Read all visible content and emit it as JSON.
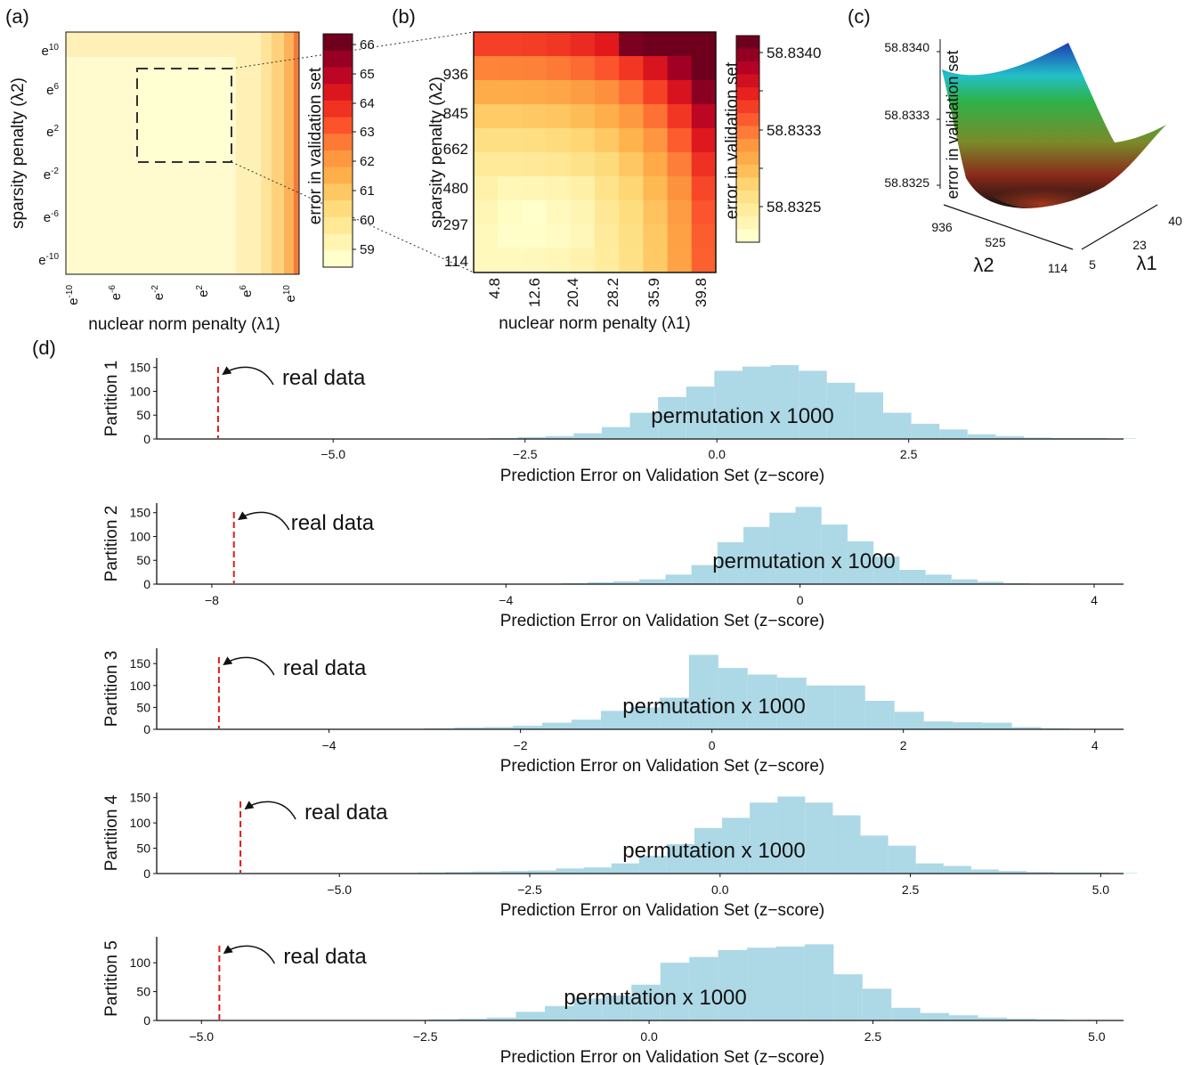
{
  "panels": {
    "a": "(a)",
    "b": "(b)",
    "c": "(c)",
    "d": "(d)"
  },
  "heatmap_a": {
    "xlabel": "nuclear norm penalty (λ1)",
    "ylabel": "sparsity penalty (λ2)",
    "xticks": [
      {
        "base": "e",
        "sup": "-10"
      },
      {
        "base": "e",
        "sup": "-6"
      },
      {
        "base": "e",
        "sup": "-2"
      },
      {
        "base": "e",
        "sup": "2"
      },
      {
        "base": "e",
        "sup": "6"
      },
      {
        "base": "e",
        "sup": "10"
      }
    ],
    "yticks": [
      {
        "base": "e",
        "sup": "10"
      },
      {
        "base": "e",
        "sup": "6"
      },
      {
        "base": "e",
        "sup": "2"
      },
      {
        "base": "e",
        "sup": "-2"
      },
      {
        "base": "e",
        "sup": "-6"
      },
      {
        "base": "e",
        "sup": "-10"
      }
    ],
    "colorbar_label": "error in validation set",
    "colorbar_ticks": [
      "66",
      "65",
      "64",
      "63",
      "62",
      "61",
      "60",
      "59"
    ]
  },
  "heatmap_b": {
    "xlabel": "nuclear norm penalty (λ1)",
    "ylabel": "sparsity penalty (λ2)",
    "xticks": [
      "4.8",
      "12.6",
      "20.4",
      "28.2",
      "35.9",
      "39.8"
    ],
    "yticks": [
      "936",
      "845",
      "662",
      "480",
      "297",
      "114"
    ],
    "colorbar_label": "error in validation set",
    "colorbar_ticks": [
      "58.8340",
      "58.8333",
      "58.8325"
    ]
  },
  "surface_c": {
    "zlabel": "error in validation set",
    "zticks": [
      "58.8340",
      "58.8333",
      "58.8325"
    ],
    "lambda2_ticks": [
      "936",
      "525",
      "114"
    ],
    "lambda1_ticks": [
      "40",
      "23",
      "5"
    ],
    "lambda2_label": "λ2",
    "lambda1_label": "λ1"
  },
  "chart_data": [
    {
      "type": "histogram",
      "ylabel": "Partition 1",
      "xlabel": "Prediction Error on Validation Set (z−score)",
      "xlim": [
        -7.3,
        5.3
      ],
      "ylim": [
        0,
        170
      ],
      "yticks": [
        0,
        50,
        100,
        150
      ],
      "xticks": [
        {
          "v": -5.0,
          "l": "−5.0"
        },
        {
          "v": -2.5,
          "l": "−2.5"
        },
        {
          "v": 0.0,
          "l": "0.0"
        },
        {
          "v": 2.5,
          "l": "2.5"
        }
      ],
      "bin_start": -3.7,
      "bin_width": 0.3667,
      "counts": [
        1,
        1,
        2,
        4,
        6,
        12,
        25,
        55,
        88,
        110,
        143,
        152,
        155,
        143,
        118,
        98,
        55,
        32,
        20,
        10,
        6,
        3,
        2,
        2,
        1
      ],
      "real_data": -6.5,
      "real_label": "real data",
      "perm_label": "permutation x 1000"
    },
    {
      "type": "histogram",
      "ylabel": "Partition 2",
      "xlabel": "Prediction Error on Validation Set (z−score)",
      "xlim": [
        -8.75,
        4.4
      ],
      "ylim": [
        0,
        170
      ],
      "yticks": [
        0,
        50,
        100,
        150
      ],
      "xticks": [
        {
          "v": -8,
          "l": "−8"
        },
        {
          "v": -4,
          "l": "−4"
        },
        {
          "v": 0,
          "l": "0"
        },
        {
          "v": 4,
          "l": "4"
        }
      ],
      "bin_start": -3.6,
      "bin_width": 0.3538,
      "counts": [
        1,
        2,
        4,
        6,
        10,
        20,
        40,
        88,
        120,
        150,
        162,
        125,
        90,
        58,
        30,
        20,
        10,
        5,
        2,
        1
      ],
      "real_data": -7.7,
      "real_label": "real data",
      "perm_label": "permutation x 1000"
    },
    {
      "type": "histogram",
      "ylabel": "Partition 3",
      "xlabel": "Prediction Error on Validation Set (z−score)",
      "xlim": [
        -5.8,
        4.3
      ],
      "ylim": [
        0,
        185
      ],
      "yticks": [
        0,
        50,
        100,
        150
      ],
      "xticks": [
        {
          "v": -4,
          "l": "−4"
        },
        {
          "v": -2,
          "l": "−2"
        },
        {
          "v": 0,
          "l": "0"
        },
        {
          "v": 2,
          "l": "2"
        },
        {
          "v": 4,
          "l": "4"
        }
      ],
      "bin_start": -3.0,
      "bin_width": 0.3067,
      "counts": [
        2,
        4,
        5,
        8,
        15,
        22,
        42,
        50,
        72,
        170,
        140,
        125,
        118,
        100,
        100,
        65,
        40,
        18,
        16,
        15,
        5,
        2,
        1
      ],
      "real_data": -5.15,
      "real_label": "real data",
      "perm_label": "permutation x 1000"
    },
    {
      "type": "histogram",
      "ylabel": "Partition 4",
      "xlabel": "Prediction Error on Validation Set (z−score)",
      "xlim": [
        -7.4,
        5.3
      ],
      "ylim": [
        0,
        160
      ],
      "yticks": [
        0,
        50,
        100,
        150
      ],
      "xticks": [
        {
          "v": -5.0,
          "l": "−5.0"
        },
        {
          "v": -2.5,
          "l": "−2.5"
        },
        {
          "v": 0.0,
          "l": "0.0"
        },
        {
          "v": 2.5,
          "l": "2.5"
        },
        {
          "v": 5.0,
          "l": "5.0"
        }
      ],
      "bin_start": -4.7,
      "bin_width": 0.3636,
      "counts": [
        1,
        1,
        2,
        3,
        4,
        5,
        6,
        10,
        12,
        20,
        35,
        58,
        90,
        110,
        140,
        152,
        140,
        115,
        75,
        55,
        20,
        15,
        8,
        5,
        3,
        2,
        2,
        1
      ],
      "real_data": -6.3,
      "real_label": "real data",
      "perm_label": "permutation x 1000"
    },
    {
      "type": "histogram",
      "ylabel": "Partition 5",
      "xlabel": "Prediction Error on Validation Set (z−score)",
      "xlim": [
        -5.5,
        5.3
      ],
      "ylim": [
        0,
        145
      ],
      "yticks": [
        0,
        50,
        100
      ],
      "xticks": [
        {
          "v": -5.0,
          "l": "−5.0"
        },
        {
          "v": -2.5,
          "l": "−2.5"
        },
        {
          "v": 0.0,
          "l": "0.0"
        },
        {
          "v": 2.5,
          "l": "2.5"
        },
        {
          "v": 5.0,
          "l": "5.0"
        }
      ],
      "bin_start": -3.1,
      "bin_width": 0.3226,
      "counts": [
        1,
        1,
        2,
        3,
        5,
        15,
        25,
        38,
        43,
        62,
        100,
        110,
        122,
        126,
        128,
        132,
        80,
        55,
        22,
        13,
        9,
        5,
        3,
        2,
        1
      ],
      "real_data": -4.8,
      "real_label": "real data",
      "perm_label": "permutation x 1000"
    }
  ],
  "colors": {
    "hist": "#add8e6",
    "real": "#e41a1c"
  }
}
